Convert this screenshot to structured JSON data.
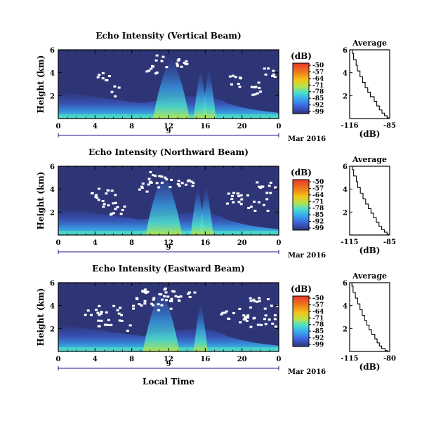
{
  "chart_data": [
    {
      "type": "heatmap",
      "title": "Echo Intensity (Vertical Beam)",
      "ylabel": "Height (km)",
      "x_ticks": [
        "0",
        "4",
        "8",
        "12",
        "16",
        "20",
        "0"
      ],
      "y_ticks": [
        "6",
        "4",
        "2"
      ],
      "xlim": [
        0,
        24
      ],
      "ylim": [
        0,
        6
      ],
      "date_marker": "9",
      "date_label": "Mar 2016",
      "colorbar": {
        "unit": "(dB)",
        "ticks": [
          "-50",
          "-57",
          "-64",
          "-71",
          "-78",
          "-85",
          "-92",
          "-99"
        ],
        "range": [
          -99,
          -50
        ]
      },
      "enhanced_echo_hours": [
        12.3,
        15.5,
        16.4
      ],
      "no_data_color": "#ffffff",
      "background_color": "#2e3577",
      "profile": {
        "title": "Average",
        "xlabel": "(dB)",
        "x_ticks": [
          "-116",
          "-85"
        ],
        "y_ticks": [
          "6",
          "4",
          "2"
        ],
        "xlim": [
          -116,
          -85
        ],
        "ylim": [
          0,
          6
        ],
        "x": [
          -114,
          -113,
          -111,
          -110,
          -108,
          -106,
          -104,
          -102,
          -100,
          -97,
          -95,
          -93,
          -91,
          -89,
          -87,
          -86
        ],
        "y": [
          6.0,
          5.4,
          4.9,
          4.4,
          3.9,
          3.4,
          2.9,
          2.5,
          2.1,
          1.7,
          1.3,
          0.9,
          0.6,
          0.35,
          0.15,
          0.0
        ]
      }
    },
    {
      "type": "heatmap",
      "title": "Echo Intensity (Northward Beam)",
      "ylabel": "Height (km)",
      "x_ticks": [
        "0",
        "4",
        "8",
        "12",
        "16",
        "20",
        "0"
      ],
      "y_ticks": [
        "6",
        "4",
        "2"
      ],
      "xlim": [
        0,
        24
      ],
      "ylim": [
        0,
        6
      ],
      "date_marker": "9",
      "date_label": "Mar 2016",
      "colorbar": {
        "unit": "(dB)",
        "ticks": [
          "-50",
          "-57",
          "-64",
          "-71",
          "-78",
          "-85",
          "-92",
          "-99"
        ],
        "range": [
          -99,
          -50
        ]
      },
      "enhanced_echo_hours": [
        11.5,
        15.2,
        16.1
      ],
      "no_data_color": "#ffffff",
      "background_color": "#2e3577",
      "profile": {
        "title": "Average",
        "xlabel": "(dB)",
        "x_ticks": [
          "-115",
          "-85"
        ],
        "y_ticks": [
          "6",
          "4",
          "2"
        ],
        "xlim": [
          -115,
          -85
        ],
        "ylim": [
          0,
          6
        ],
        "x": [
          -113,
          -112,
          -110,
          -109,
          -107,
          -105,
          -103,
          -101,
          -99,
          -97,
          -95,
          -93,
          -91,
          -89,
          -87,
          -86
        ],
        "y": [
          6.0,
          5.4,
          4.9,
          4.4,
          3.9,
          3.4,
          2.9,
          2.5,
          2.1,
          1.7,
          1.3,
          0.9,
          0.6,
          0.35,
          0.15,
          0.0
        ]
      }
    },
    {
      "type": "heatmap",
      "title": "Echo Intensity (Eastward Beam)",
      "ylabel": "Height (km)",
      "xlabel": "Local Time",
      "x_ticks": [
        "0",
        "4",
        "8",
        "12",
        "16",
        "20",
        "0"
      ],
      "y_ticks": [
        "6",
        "4",
        "2"
      ],
      "xlim": [
        0,
        24
      ],
      "ylim": [
        0,
        6
      ],
      "date_marker": "9",
      "date_label": "Mar 2016",
      "colorbar": {
        "unit": "(dB)",
        "ticks": [
          "-50",
          "-57",
          "-64",
          "-71",
          "-78",
          "-85",
          "-92",
          "-99"
        ],
        "range": [
          -99,
          -50
        ]
      },
      "enhanced_echo_hours": [
        11.2,
        15.5
      ],
      "no_data_color": "#ffffff",
      "background_color": "#2e3577",
      "profile": {
        "title": "Average",
        "xlabel": "(dB)",
        "x_ticks": [
          "-115",
          "-80"
        ],
        "y_ticks": [
          "6",
          "4",
          "2"
        ],
        "xlim": [
          -115,
          -80
        ],
        "ylim": [
          0,
          6
        ],
        "x": [
          -113,
          -112,
          -110,
          -108,
          -106,
          -104,
          -102,
          -100,
          -98,
          -96,
          -93,
          -91,
          -89,
          -87,
          -84,
          -82
        ],
        "y": [
          6.0,
          5.4,
          4.9,
          4.4,
          3.9,
          3.4,
          2.9,
          2.5,
          2.1,
          1.7,
          1.3,
          0.9,
          0.6,
          0.35,
          0.15,
          0.0
        ]
      }
    }
  ],
  "colorbar_colors": [
    "#e8362a",
    "#f07a1e",
    "#f2c418",
    "#b9e24a",
    "#4de0c9",
    "#38a7f0",
    "#3e63dd",
    "#2e3577"
  ]
}
